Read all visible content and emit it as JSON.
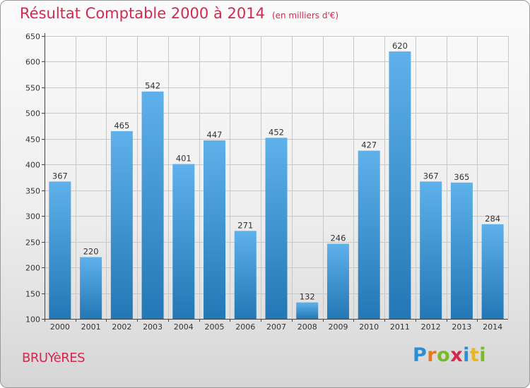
{
  "header": {
    "title": "Résultat Comptable 2000 à 2014",
    "subtitle": "(en milliers d'€)"
  },
  "footer": {
    "place": "BRUYèRES",
    "logo": {
      "letters": [
        "P",
        "r",
        "o",
        "x",
        "i",
        "t",
        "i"
      ],
      "colors": [
        "#2a8fd6",
        "#e87722",
        "#7ab929",
        "#d6274f",
        "#2a8fd6",
        "#e8b622",
        "#7ab929"
      ]
    }
  },
  "chart_data": {
    "type": "bar",
    "title": "Résultat Comptable 2000 à 2014",
    "subtitle": "(en milliers d'€)",
    "xlabel": "",
    "ylabel": "",
    "categories": [
      "2000",
      "2001",
      "2002",
      "2003",
      "2004",
      "2005",
      "2006",
      "2007",
      "2008",
      "2009",
      "2010",
      "2011",
      "2012",
      "2013",
      "2014"
    ],
    "values": [
      367,
      220,
      465,
      542,
      401,
      447,
      271,
      452,
      132,
      246,
      427,
      620,
      367,
      365,
      284
    ],
    "ylim": [
      100,
      650
    ],
    "yticks": [
      100,
      150,
      200,
      250,
      300,
      350,
      400,
      450,
      500,
      550,
      600,
      650
    ],
    "grid": true,
    "legend": "none",
    "colors": {
      "bar_light": "#5eb1ea",
      "bar_dark": "#2377b4",
      "grid": "#c8c8c8",
      "axis": "#444444"
    }
  }
}
